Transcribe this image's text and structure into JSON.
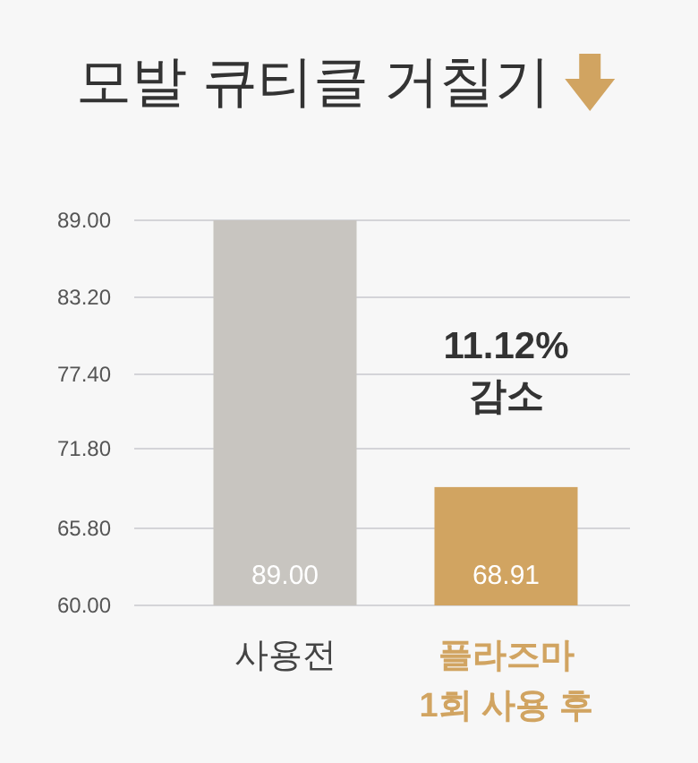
{
  "chart_data": {
    "type": "bar",
    "title": "모발 큐티클 거칠기",
    "categories": [
      "사용전",
      "플라즈마\n1회 사용 후"
    ],
    "values": [
      89.0,
      68.91
    ],
    "value_labels": [
      "89.00",
      "68.91"
    ],
    "colors": [
      "#c8c5c0",
      "#d1a461"
    ],
    "ylim": [
      60,
      89
    ],
    "yticks": [
      {
        "value": 60,
        "label": "60.00"
      },
      {
        "value": 65.8,
        "label": "65.80"
      },
      {
        "value": 71.8,
        "label": "71.80"
      },
      {
        "value": 77.4,
        "label": "77.40"
      },
      {
        "value": 83.2,
        "label": "83.20"
      },
      {
        "value": 89,
        "label": "89.00"
      }
    ],
    "grid": "y",
    "annotations": [
      "11.12%\n감소"
    ]
  }
}
